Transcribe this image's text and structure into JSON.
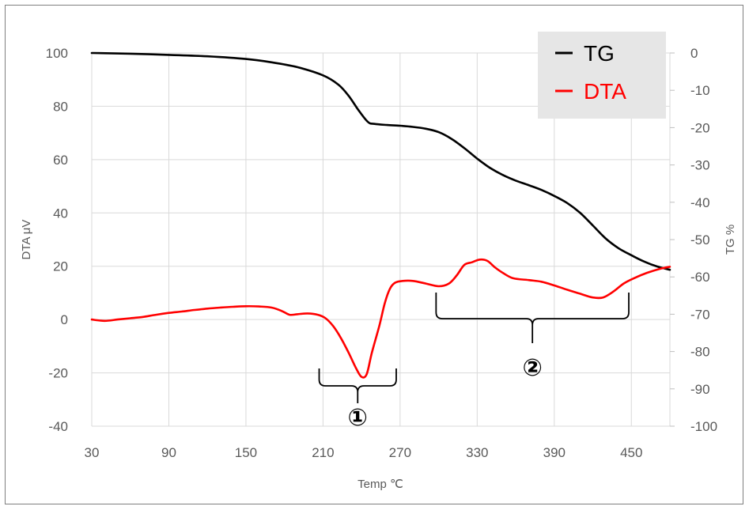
{
  "chart_data": {
    "type": "line",
    "xlabel": "Temp ℃",
    "ylabel_left": "DTA μV",
    "ylabel_right": "TG %",
    "xlim": [
      30,
      480
    ],
    "ylim_left": [
      -40,
      100
    ],
    "ylim_right": [
      -100,
      0
    ],
    "x_ticks": [
      "30",
      "90",
      "150",
      "210",
      "270",
      "330",
      "390",
      "450"
    ],
    "y_left_ticks": [
      "100",
      "80",
      "60",
      "40",
      "20",
      "0",
      "-20",
      "-40"
    ],
    "y_right_ticks": [
      "0",
      "-10",
      "-20",
      "-30",
      "-40",
      "-50",
      "-60",
      "-70",
      "-80",
      "-90",
      "-100"
    ],
    "grid": true,
    "legend_position": "top-right",
    "series": [
      {
        "name": "TG",
        "color": "#000000",
        "axis": "right",
        "points": [
          [
            30,
            0
          ],
          [
            60,
            -0.2
          ],
          [
            90,
            -0.5
          ],
          [
            120,
            -0.9
          ],
          [
            150,
            -1.6
          ],
          [
            170,
            -2.5
          ],
          [
            190,
            -3.8
          ],
          [
            210,
            -6
          ],
          [
            222,
            -8.5
          ],
          [
            230,
            -11.5
          ],
          [
            238,
            -15.5
          ],
          [
            245,
            -18.5
          ],
          [
            250,
            -19
          ],
          [
            260,
            -19.3
          ],
          [
            270,
            -19.5
          ],
          [
            280,
            -19.8
          ],
          [
            290,
            -20.3
          ],
          [
            300,
            -21.2
          ],
          [
            310,
            -23
          ],
          [
            320,
            -25.5
          ],
          [
            330,
            -28.3
          ],
          [
            340,
            -30.8
          ],
          [
            350,
            -32.7
          ],
          [
            360,
            -34.2
          ],
          [
            370,
            -35.4
          ],
          [
            380,
            -36.7
          ],
          [
            390,
            -38.3
          ],
          [
            400,
            -40.2
          ],
          [
            410,
            -42.8
          ],
          [
            420,
            -46.2
          ],
          [
            430,
            -49.7
          ],
          [
            440,
            -52.3
          ],
          [
            450,
            -54.2
          ],
          [
            460,
            -55.9
          ],
          [
            470,
            -57.2
          ],
          [
            480,
            -58.1
          ]
        ]
      },
      {
        "name": "DTA",
        "color": "#ff0000",
        "axis": "left",
        "points": [
          [
            30,
            0
          ],
          [
            40,
            -0.5
          ],
          [
            50,
            0
          ],
          [
            60,
            0.5
          ],
          [
            70,
            1
          ],
          [
            80,
            1.8
          ],
          [
            90,
            2.5
          ],
          [
            100,
            3
          ],
          [
            110,
            3.6
          ],
          [
            120,
            4.1
          ],
          [
            130,
            4.5
          ],
          [
            140,
            4.8
          ],
          [
            150,
            5
          ],
          [
            160,
            4.9
          ],
          [
            170,
            4.5
          ],
          [
            178,
            3.2
          ],
          [
            184,
            1.8
          ],
          [
            190,
            2
          ],
          [
            198,
            2.3
          ],
          [
            206,
            1.8
          ],
          [
            212,
            0.5
          ],
          [
            218,
            -2.5
          ],
          [
            224,
            -7
          ],
          [
            230,
            -12.5
          ],
          [
            236,
            -18.5
          ],
          [
            240,
            -21.5
          ],
          [
            244,
            -20.5
          ],
          [
            248,
            -12.5
          ],
          [
            254,
            -2
          ],
          [
            258,
            6
          ],
          [
            262,
            11.5
          ],
          [
            266,
            13.8
          ],
          [
            272,
            14.5
          ],
          [
            280,
            14.5
          ],
          [
            290,
            13.5
          ],
          [
            300,
            12.5
          ],
          [
            308,
            13.5
          ],
          [
            314,
            16.5
          ],
          [
            320,
            20.5
          ],
          [
            326,
            21.5
          ],
          [
            332,
            22.5
          ],
          [
            338,
            22
          ],
          [
            344,
            19.5
          ],
          [
            350,
            17.5
          ],
          [
            358,
            15.5
          ],
          [
            370,
            14.8
          ],
          [
            380,
            14.2
          ],
          [
            390,
            12.8
          ],
          [
            400,
            11.2
          ],
          [
            410,
            9.7
          ],
          [
            420,
            8.3
          ],
          [
            428,
            8.3
          ],
          [
            436,
            10.5
          ],
          [
            444,
            13.5
          ],
          [
            452,
            15.5
          ],
          [
            462,
            17.5
          ],
          [
            472,
            19
          ],
          [
            480,
            19.8
          ]
        ]
      }
    ],
    "annotations": [
      {
        "label": "①",
        "x_from": 207,
        "x_to": 267
      },
      {
        "label": "②",
        "x_from": 298,
        "x_to": 448
      }
    ]
  }
}
